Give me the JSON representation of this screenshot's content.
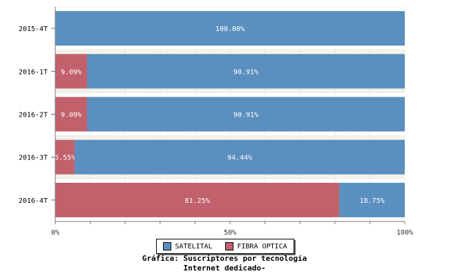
{
  "caption": {
    "line1": "Gráfica: Suscriptores por tecnología",
    "line2": "Internet dedicado-"
  },
  "colors": {
    "satelital": "#5b8fbf",
    "fibra": "#c0616b",
    "band_light": "#f3f3ea",
    "band_white": "#ffffff"
  },
  "chart_data": {
    "type": "bar",
    "orientation": "horizontal",
    "stacked": true,
    "categories": [
      "2015-4T",
      "2016-1T",
      "2016-2T",
      "2016-3T",
      "2016-4T"
    ],
    "series": [
      {
        "name": "FIBRA OPTICA",
        "values": [
          0,
          9.09,
          9.09,
          5.55,
          81.25
        ],
        "labels": [
          "",
          "9.09%",
          "9.09%",
          "5.55%",
          "81.25%"
        ]
      },
      {
        "name": "SATELITAL",
        "values": [
          100.0,
          90.91,
          90.91,
          94.44,
          18.75
        ],
        "labels": [
          "100.00%",
          "90.91%",
          "90.91%",
          "94.44%",
          "18.75%"
        ]
      }
    ],
    "xlim": [
      0,
      100
    ],
    "x_ticks": [
      "0%",
      "50%",
      "100%"
    ],
    "legend": [
      "SATELITAL",
      "FIBRA OPTICA"
    ],
    "legend_position": "bottom",
    "grid": true
  }
}
